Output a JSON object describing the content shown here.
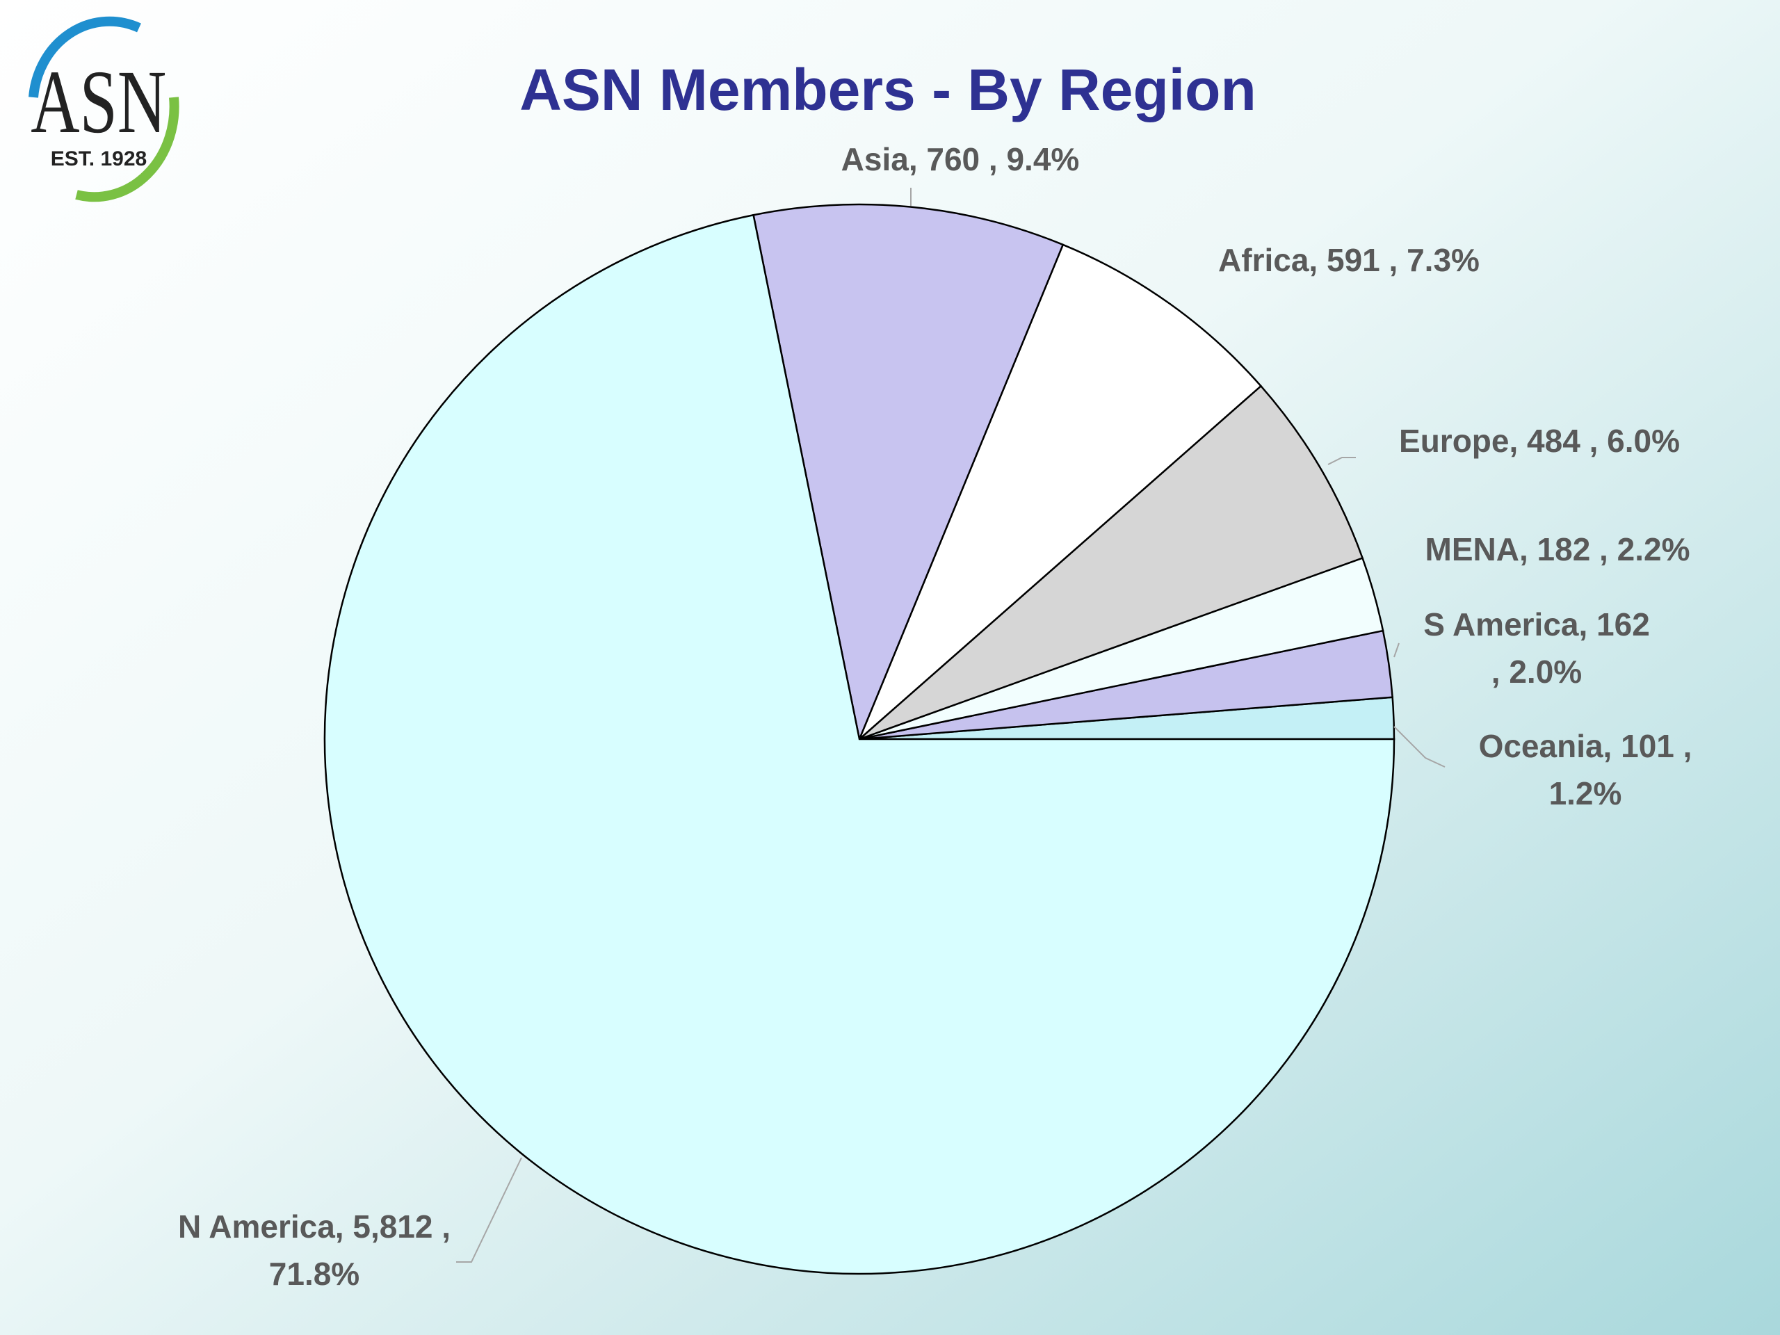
{
  "logo": {
    "text": "ASN",
    "subtext": "EST. 1928"
  },
  "chart_data": {
    "type": "pie",
    "title": "ASN Members - By Region",
    "values": [
      101,
      162,
      182,
      484,
      591,
      760,
      5812
    ],
    "value_labels": [
      [
        "Oceania, 101 ,",
        "1.2%"
      ],
      [
        "S America, 162",
        ", 2.0%"
      ],
      [
        "MENA, 182 , 2.2%"
      ],
      [
        "Europe, 484 , 6.0%"
      ],
      [
        "Africa, 591 , 7.3%"
      ],
      [
        "Asia, 760 , 9.4%"
      ],
      [
        "N America, 5,812 ,",
        "71.8%"
      ]
    ],
    "colors": [
      "#c4f0f6",
      "#c6c2ee",
      "#f2fefe",
      "#d6d6d6",
      "#ffffff",
      "#c8c4f0",
      "#d8feff"
    ]
  }
}
